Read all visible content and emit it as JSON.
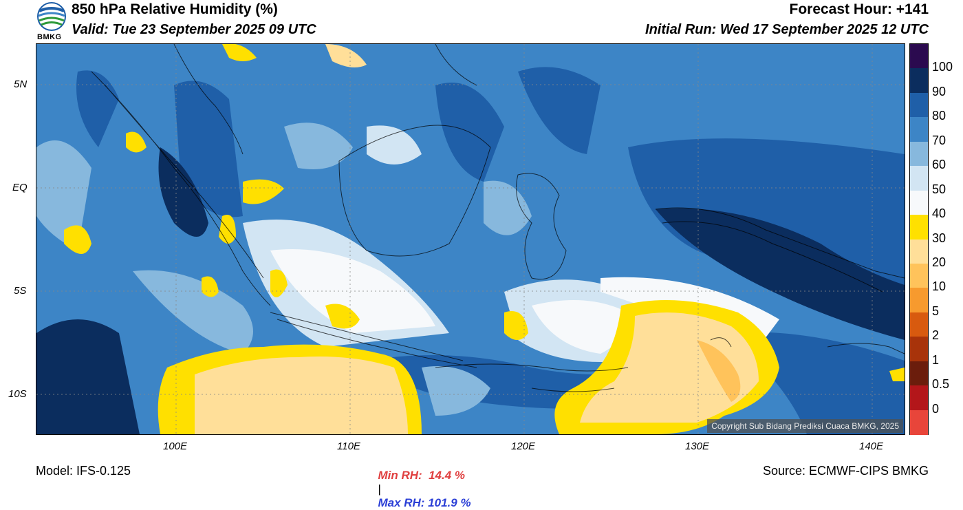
{
  "header": {
    "title": "850 hPa Relative Humidity (%)",
    "valid": "Valid: Tue 23 September 2025 09 UTC",
    "forecast_hour": "Forecast Hour: +141",
    "initial_run": "Initial Run: Wed 17 September 2025 12 UTC",
    "logo_text": "BMKG"
  },
  "map": {
    "lat_labels": [
      "5N",
      "EQ",
      "5S",
      "10S"
    ],
    "lon_labels": [
      "100E",
      "110E",
      "120E",
      "130E",
      "140E"
    ],
    "copyright": "Copyright Sub Bidang Prediksi Cuaca BMKG, 2025"
  },
  "colorbar": {
    "labels": [
      "100",
      "90",
      "80",
      "70",
      "60",
      "50",
      "40",
      "30",
      "20",
      "10",
      "5",
      "2",
      "1",
      "0.5",
      "0"
    ],
    "colors": [
      "#2b0a4f",
      "#0b2d5e",
      "#1f5fa8",
      "#3d85c6",
      "#87b8dd",
      "#d2e5f3",
      "#f7f9fb",
      "#ffe000",
      "#ffdf99",
      "#ffc35b",
      "#f79a2e",
      "#d85a0f",
      "#a8330a",
      "#6b1d0c",
      "#b3161a",
      "#e8453a"
    ]
  },
  "stats": {
    "min_label": "Min RH:  14.4 %",
    "separator": "|",
    "max_label": "Max RH: 101.9 %",
    "min_color": "#e04040",
    "max_color": "#2b3fd6"
  },
  "footer": {
    "model": "Model: IFS-0.125",
    "source": "Source: ECMWF-CIPS BMKG"
  }
}
